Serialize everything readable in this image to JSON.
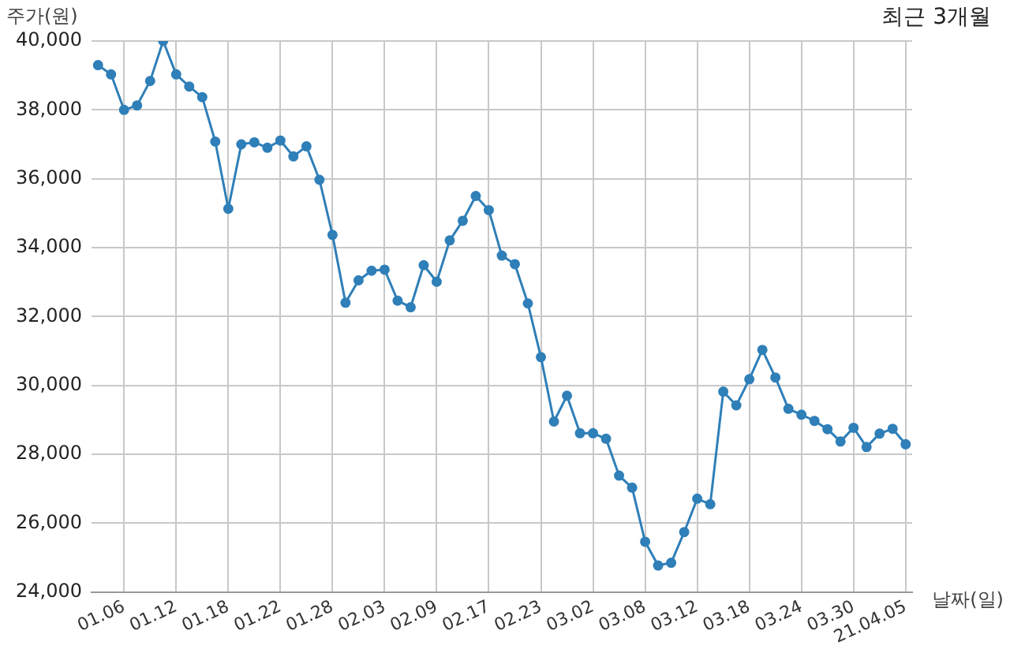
{
  "chart_data": {
    "type": "line",
    "title": "최근 3개월",
    "xlabel": "날짜(일)",
    "ylabel": "주가(원)",
    "categories": [
      null,
      null,
      "01.06",
      null,
      null,
      null,
      "01.12",
      null,
      null,
      null,
      "01.18",
      null,
      null,
      null,
      "01.22",
      null,
      null,
      null,
      "01.28",
      null,
      null,
      null,
      "02.03",
      null,
      null,
      null,
      "02.09",
      null,
      null,
      null,
      "02.17",
      null,
      null,
      null,
      "02.23",
      null,
      null,
      null,
      "03.02",
      null,
      null,
      null,
      "03.08",
      null,
      null,
      null,
      "03.12",
      null,
      null,
      null,
      "03.18",
      null,
      null,
      null,
      "03.24",
      null,
      null,
      null,
      "03.30",
      null,
      null,
      null,
      "21.04.05"
    ],
    "series": [
      {
        "color": "#2f7fb8",
        "values": [
          39300,
          39030,
          38000,
          38130,
          38840,
          40000,
          39030,
          38680,
          38370,
          37080,
          35130,
          37000,
          37060,
          36900,
          37110,
          36650,
          36940,
          35970,
          34370,
          32400,
          33050,
          33330,
          33360,
          32460,
          32270,
          33490,
          33010,
          34210,
          34780,
          35500,
          35090,
          33770,
          33520,
          32380,
          30820,
          28950,
          29700,
          28610,
          28610,
          28450,
          27380,
          27030,
          25460,
          24770,
          24850,
          25740,
          26710,
          26550,
          29820,
          29420,
          30180,
          31030,
          30230,
          29320,
          29150,
          28970,
          28730,
          28370,
          28770,
          28210,
          28600,
          28740,
          28290
        ]
      }
    ],
    "ylim": [
      24000,
      40000
    ],
    "yticks": [
      {
        "value": 24000,
        "label": "24,000"
      },
      {
        "value": 26000,
        "label": "26,000"
      },
      {
        "value": 28000,
        "label": "28,000"
      },
      {
        "value": 30000,
        "label": "30,000"
      },
      {
        "value": 32000,
        "label": "32,000"
      },
      {
        "value": 34000,
        "label": "34,000"
      },
      {
        "value": 36000,
        "label": "36,000"
      },
      {
        "value": 38000,
        "label": "38,000"
      },
      {
        "value": 40000,
        "label": "40,000"
      }
    ],
    "grid": true,
    "marker": "circle",
    "line_style": "solid",
    "legend": false
  }
}
